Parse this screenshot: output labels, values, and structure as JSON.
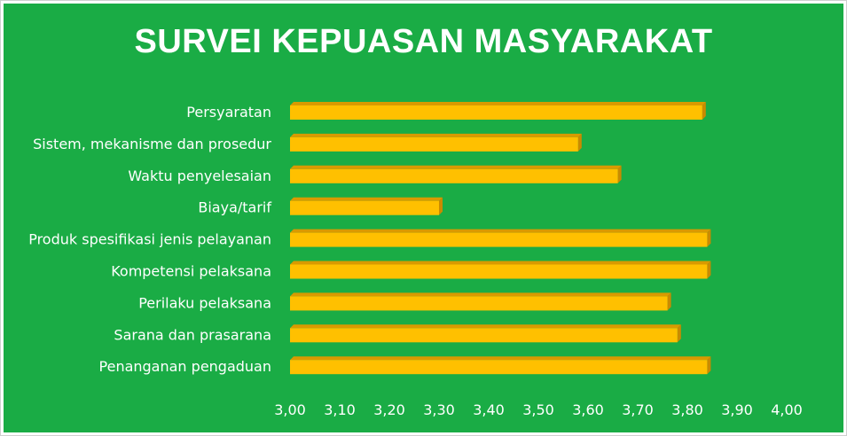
{
  "chart_data": {
    "type": "bar",
    "orientation": "horizontal",
    "title": "SURVEI KEPUASAN MASYARAKAT",
    "xlabel": "",
    "ylabel": "",
    "xlim": [
      3.0,
      4.0
    ],
    "grid": false,
    "legend": "none",
    "categories": [
      "Persyaratan",
      "Sistem, mekanisme dan prosedur",
      "Waktu penyelesaian",
      "Biaya/tarif",
      "Produk spesifikasi jenis pelayanan",
      "Kompetensi pelaksana",
      "Perilaku pelaksana",
      "Sarana dan prasarana",
      "Penanganan pengaduan"
    ],
    "values": [
      3.83,
      3.58,
      3.66,
      3.3,
      3.84,
      3.84,
      3.76,
      3.78,
      3.84
    ],
    "ticks": [
      "3,00",
      "3,10",
      "3,20",
      "3,30",
      "3,40",
      "3,50",
      "3,60",
      "3,70",
      "3,80",
      "3,90",
      "4,00"
    ],
    "colors": {
      "background": "#1aac45",
      "bar_front": "#ffc000",
      "bar_top": "#d99a00",
      "bar_side": "#c98a00",
      "text": "#ffffff"
    }
  }
}
